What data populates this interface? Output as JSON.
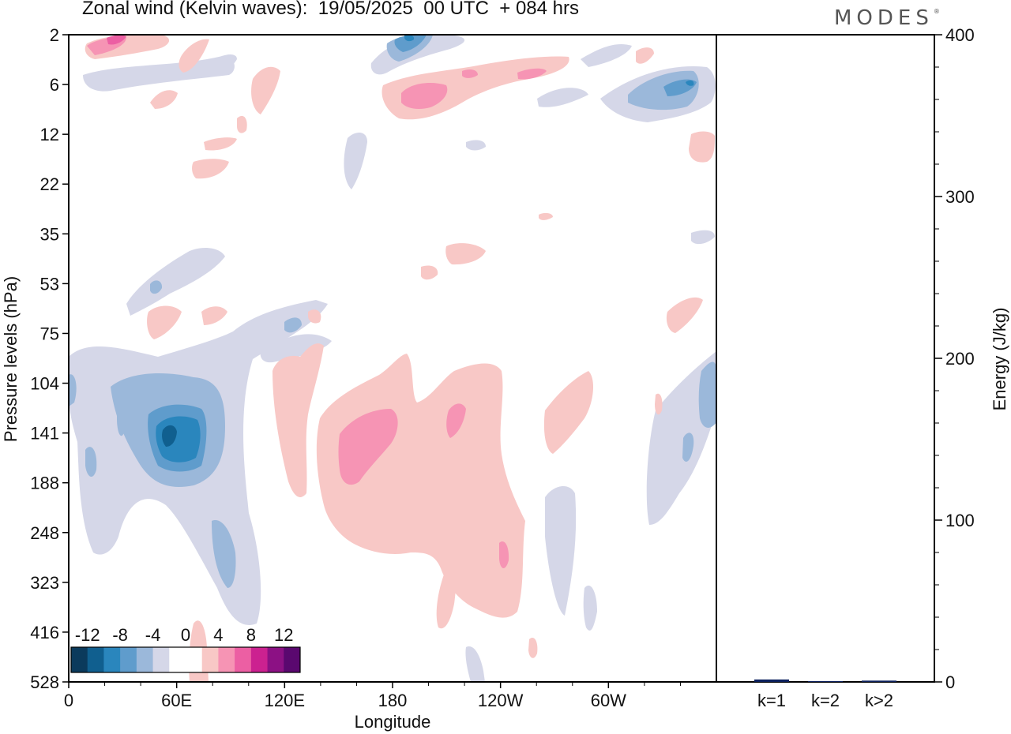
{
  "header": {
    "title": "Zonal wind (Kelvin waves):  19/05/2025  00 UTC  + 084 hrs",
    "brand": "MODES"
  },
  "chart_data": [
    {
      "type": "heatmap",
      "title": "Zonal wind (Kelvin waves):  19/05/2025  00 UTC  + 084 hrs",
      "xlabel": "Longitude",
      "ylabel": "Pressure levels (hPa)",
      "x_ticks": [
        "0",
        "60E",
        "120E",
        "180",
        "120W",
        "60W"
      ],
      "y_ticks": [
        "2",
        "6",
        "12",
        "22",
        "35",
        "53",
        "75",
        "104",
        "141",
        "188",
        "248",
        "323",
        "416",
        "528"
      ],
      "colorbar": {
        "labels": [
          "-12",
          "-8",
          "-4",
          "0",
          "4",
          "8",
          "12"
        ],
        "colors": [
          "#0b3a5c",
          "#105f8f",
          "#2a86bd",
          "#5f9ccc",
          "#9bb8da",
          "#d5d7e8",
          "#ffffff",
          "#ffffff",
          "#f8c8c6",
          "#f694b4",
          "#ec5fa3",
          "#cc2190",
          "#8c1184",
          "#5a086f"
        ]
      },
      "features": [
        {
          "kind": "neg",
          "level": 4,
          "lon": 55,
          "p": 141
        },
        {
          "kind": "neg",
          "level": 3,
          "lon": 45,
          "p": 30
        },
        {
          "kind": "pos",
          "level": 2,
          "lon": 160,
          "p": 141
        },
        {
          "kind": "pos",
          "level": 2,
          "lon": 205,
          "p": 6
        },
        {
          "kind": "pos",
          "level": 3,
          "lon": 20,
          "p": 2
        },
        {
          "kind": "neg",
          "level": 3,
          "lon": 185,
          "p": 2
        },
        {
          "kind": "neg",
          "level": 3,
          "lon": 340,
          "p": 6
        }
      ]
    },
    {
      "type": "bar",
      "categories": [
        "k=1",
        "k=2",
        "k>2"
      ],
      "values": [
        1.5,
        0.5,
        0.8
      ],
      "ylabel": "Energy (J/kg)",
      "ylim": [
        0,
        400
      ],
      "y_ticks": [
        "0",
        "100",
        "200",
        "300",
        "400"
      ],
      "bar_color": "#0b1f5c"
    }
  ]
}
